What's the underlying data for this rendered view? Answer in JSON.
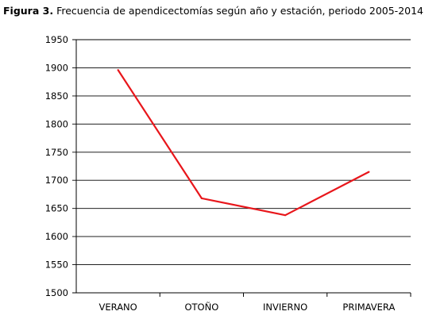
{
  "caption": {
    "label": "Figura 3.",
    "text": "Frecuencia de apendicectomías según año y estación, periodo 2005-2014"
  },
  "colors": {
    "series_line": "#e8161b",
    "grid": "#000000",
    "axis": "#000000"
  },
  "chart_data": {
    "type": "line",
    "title": "",
    "xlabel": "",
    "ylabel": "",
    "categories": [
      "VERANO",
      "OTOÑO",
      "INVIERNO",
      "PRIMAVERA"
    ],
    "series": [
      {
        "values": [
          1896,
          1668,
          1638,
          1715
        ]
      }
    ],
    "ylim": [
      1500,
      1950
    ],
    "yticks": [
      1500,
      1550,
      1600,
      1650,
      1700,
      1750,
      1800,
      1850,
      1900,
      1950
    ],
    "grid": true,
    "legend": "none"
  }
}
